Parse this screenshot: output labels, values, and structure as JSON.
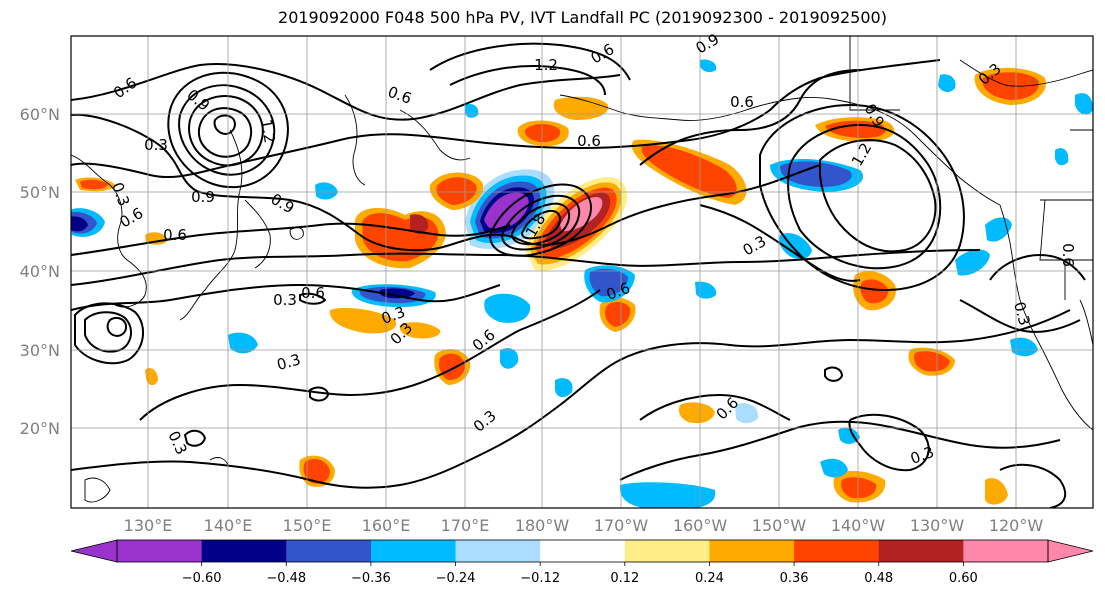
{
  "title": "2019092000 F048 500 hPa PV, IVT Landfall PC (2019092300 - 2019092500)",
  "lat_labels": [
    "60°N",
    "50°N",
    "40°N",
    "30°N",
    "20°N"
  ],
  "lon_labels": [
    "130°E",
    "140°E",
    "150°E",
    "160°E",
    "170°E",
    "180°W",
    "170°W",
    "160°W",
    "150°W",
    "140°W",
    "130°W",
    "120°W"
  ],
  "colorbar": {
    "colors": [
      "#9933cc",
      "#000088",
      "#3355cc",
      "#00bbff",
      "#aaddff",
      "#ffffff",
      "#ffee88",
      "#ffaa00",
      "#ff4400",
      "#b22222",
      "#ff88aa"
    ],
    "ticks": [
      "−0.60",
      "−0.48",
      "−0.36",
      "−0.24",
      "−0.12",
      "0.12",
      "0.24",
      "0.36",
      "0.48",
      "0.60"
    ]
  },
  "contour_labels": [
    "0.6",
    "0.3",
    "0.9",
    "1.2",
    "0.9",
    "0.6",
    "0.3",
    "0.6",
    "0.9",
    "0.6",
    "1.2",
    "0.6",
    "0.3",
    "0.6",
    "0.3",
    "0.3",
    "0.6",
    "0.3",
    "0.6",
    "0.3",
    "0.3",
    "0.6",
    "0.6",
    "0.9",
    "0.6",
    "0.3",
    "0.3",
    "0.9",
    "1.2",
    "1.8",
    "0.3",
    "0.6",
    "0.3"
  ]
}
